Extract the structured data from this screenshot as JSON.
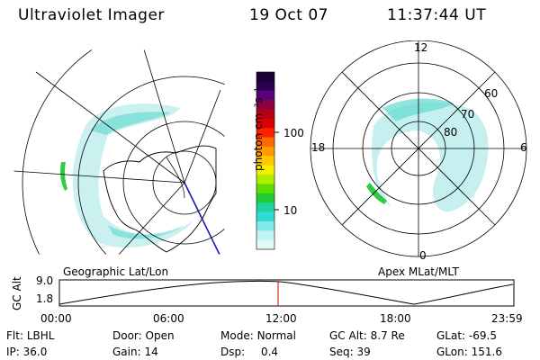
{
  "header": {
    "title": "Ultraviolet Imager",
    "date": "19 Oct 07",
    "time": "11:37:44 UT"
  },
  "left_panel": {
    "label": "Geographic Lat/Lon"
  },
  "right_panel": {
    "label": "Apex MLat/MLT",
    "mlt_labels": {
      "top": "12",
      "bottom": "0",
      "left": "18",
      "right": "6"
    },
    "lat_labels": [
      "60",
      "70",
      "80"
    ]
  },
  "colorbar": {
    "unit": "photon cm⁻²s⁻¹",
    "ticks": [
      "100",
      "10"
    ],
    "colors": [
      "#1a0033",
      "#2b0050",
      "#5a007a",
      "#8a0044",
      "#b80014",
      "#d80000",
      "#ff2000",
      "#ff6a00",
      "#ff9a00",
      "#ffc800",
      "#f5f000",
      "#b0ee00",
      "#5edd00",
      "#22cc33",
      "#1fd3a0",
      "#30dcd2",
      "#7feae6",
      "#bff4f2",
      "#e4faf9"
    ]
  },
  "timeline": {
    "axis_label": "GC Alt",
    "y_ticks": [
      "9.0",
      "1.8"
    ],
    "x_ticks": [
      "00:00",
      "06:00",
      "12:00",
      "18:00",
      "23:59"
    ],
    "current_marker_color": "#d03020"
  },
  "footer": {
    "row1": [
      {
        "label": "Flt:",
        "value": "LBHL"
      },
      {
        "label": "Door:",
        "value": "Open"
      },
      {
        "label": "Mode:",
        "value": "Normal"
      },
      {
        "label": "GC Alt:",
        "value": "8.7 Re"
      },
      {
        "label": "GLat:",
        "value": "-69.5"
      }
    ],
    "row2": [
      {
        "label": "IP:",
        "value": "36.0"
      },
      {
        "label": "Gain:",
        "value": "14"
      },
      {
        "label": "Dsp:",
        "value": "0.4"
      },
      {
        "label": "Seq:",
        "value": "39"
      },
      {
        "label": "GLon:",
        "value": "151.6"
      }
    ]
  }
}
